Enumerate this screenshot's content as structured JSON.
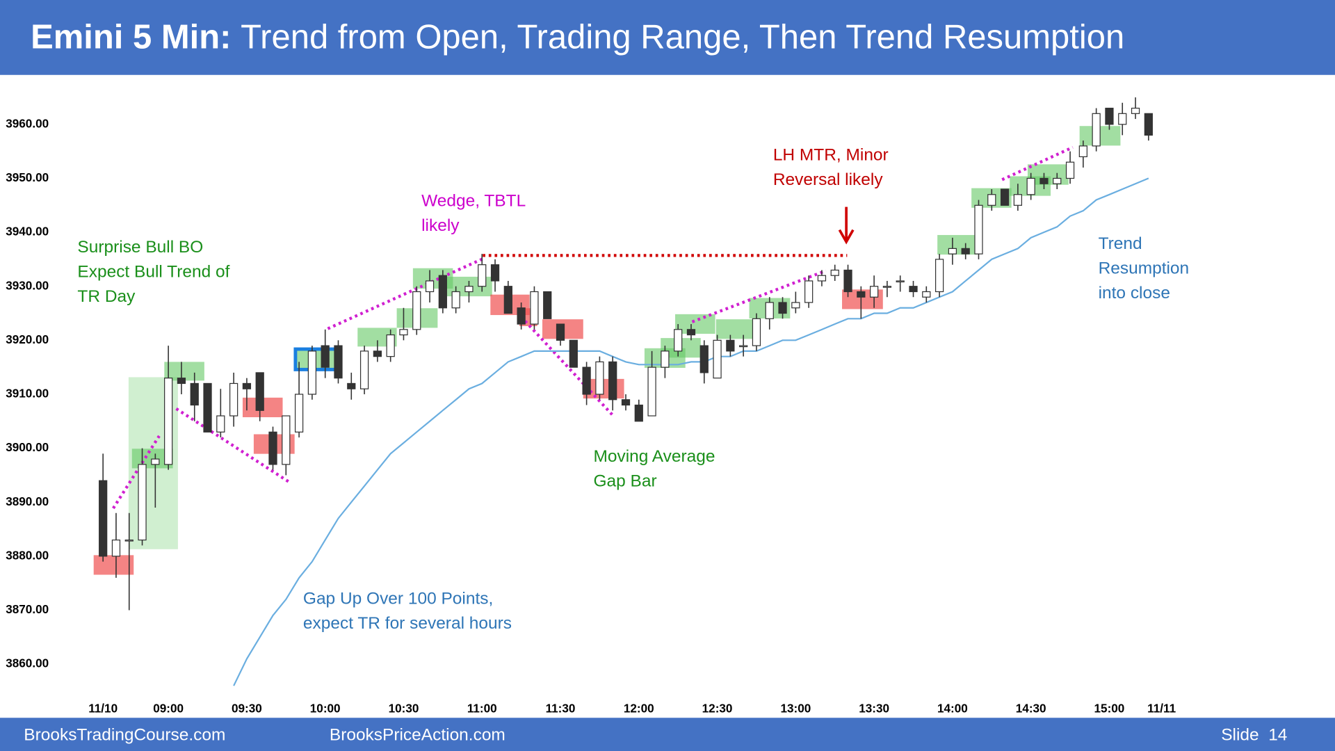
{
  "header": {
    "title_bold": "Emini 5 Min:",
    "title": "Trend from Open, Trading Range, Then Trend Resumption"
  },
  "footer": {
    "left": "BrooksTradingCourse.com",
    "center": "BrooksPriceAction.com",
    "slide": "Slide  14"
  },
  "annotations": [
    {
      "lines": [
        "Surprise Bull BO",
        "Expect Bull Trend of",
        "TR Day"
      ],
      "color": "#1a8f1a"
    },
    {
      "lines": [
        "Wedge, TBTL",
        "likely"
      ],
      "color": "#cc00cc"
    },
    {
      "lines": [
        "LH MTR, Minor",
        "Reversal likely"
      ],
      "color": "#c00000"
    },
    {
      "lines": [
        "Trend",
        "Resumption",
        "into close"
      ],
      "color": "#2e75b6"
    },
    {
      "lines": [
        "Moving Average",
        "Gap Bar"
      ],
      "color": "#1a8f1a"
    },
    {
      "lines": [
        "Gap Up Over 100 Points,",
        "expect TR for several hours"
      ],
      "color": "#2e75b6"
    }
  ],
  "chart_data": {
    "type": "candlestick",
    "categories": [
      "11/10",
      null,
      null,
      null,
      null,
      "09:00",
      null,
      null,
      null,
      null,
      null,
      "09:30",
      null,
      null,
      null,
      null,
      null,
      "10:00",
      null,
      null,
      null,
      null,
      null,
      "10:30",
      null,
      null,
      null,
      null,
      null,
      "11:00",
      null,
      null,
      null,
      null,
      null,
      "11:30",
      null,
      null,
      null,
      null,
      null,
      "12:00",
      null,
      null,
      null,
      null,
      null,
      "12:30",
      null,
      null,
      null,
      null,
      null,
      "13:00",
      null,
      null,
      null,
      null,
      null,
      "13:30",
      null,
      null,
      null,
      null,
      null,
      "14:00",
      null,
      null,
      null,
      null,
      null,
      "14:30",
      null,
      null,
      null,
      null,
      null,
      "15:00",
      null,
      null,
      null,
      "11/11"
    ],
    "open": [
      3894,
      3880,
      3883,
      3883,
      3897,
      3897,
      3913,
      3912,
      3912,
      3903,
      3906,
      3912,
      3914,
      3903,
      3897,
      3903,
      3910,
      3919,
      3919,
      3912,
      3911,
      3918,
      3917,
      3921,
      3922,
      3929,
      3932,
      3926,
      3929,
      3930,
      3934,
      3930,
      3926,
      3923,
      3929,
      3923,
      3920,
      3915,
      3910,
      3916,
      3909,
      3908,
      3906,
      3915,
      3918,
      3922,
      3919,
      3913,
      3920,
      3919,
      3919,
      3924,
      3927,
      3926,
      3927,
      3931,
      3932,
      3933,
      3929,
      3928,
      3930,
      3931,
      3930,
      3928,
      3929,
      3936,
      3937,
      3936,
      3945,
      3948,
      3945,
      3947,
      3950,
      3949,
      3950,
      3954,
      3956,
      3963,
      3960,
      3962,
      3962,
      null
    ],
    "high": [
      3899,
      3888,
      3888,
      3900,
      3899,
      3919,
      3916,
      3914,
      3912,
      3911,
      3914,
      3913,
      3914,
      3904,
      3906,
      3916,
      3919,
      3922,
      3920,
      3914,
      3919,
      3920,
      3922,
      3926,
      3930,
      3933,
      3933,
      3930,
      3931,
      3936,
      3935,
      3931,
      3927,
      3930,
      3929,
      3923,
      3920,
      3916,
      3917,
      3917,
      3910,
      3909,
      3918,
      3919,
      3923,
      3923,
      3920,
      3921,
      3921,
      3921,
      3925,
      3928,
      3928,
      3929,
      3932,
      3933,
      3934,
      3934,
      3930,
      3932,
      3931,
      3932,
      3931,
      3930,
      3936,
      3939,
      3938,
      3946,
      3948,
      3948,
      3949,
      3951,
      3951,
      3951,
      3955,
      3957,
      3963,
      3963,
      3964,
      3965,
      3962,
      null
    ],
    "low": [
      3879,
      3876,
      3870,
      3882,
      3889,
      3896,
      3910,
      3905,
      3903,
      3902,
      3904,
      3907,
      3905,
      3896,
      3895,
      3902,
      3909,
      3913,
      3912,
      3909,
      3910,
      3916,
      3916,
      3920,
      3921,
      3927,
      3925,
      3925,
      3927,
      3929,
      3929,
      3925,
      3922,
      3922,
      3924,
      3919,
      3915,
      3908,
      3909,
      3907,
      3907,
      3905,
      3906,
      3913,
      3917,
      3920,
      3912,
      3913,
      3917,
      3917,
      3918,
      3922,
      3924,
      3925,
      3926,
      3930,
      3931,
      3928,
      3924,
      3926,
      3928,
      3929,
      3928,
      3927,
      3928,
      3934,
      3935,
      3935,
      3944,
      3945,
      3944,
      3946,
      3948,
      3948,
      3949,
      3952,
      3955,
      3959,
      3958,
      3961,
      3957,
      null
    ],
    "close": [
      3880,
      3883,
      3883,
      3897,
      3898,
      3913,
      3912,
      3908,
      3903,
      3906,
      3912,
      3911,
      3907,
      3897,
      3906,
      3910,
      3918,
      3915,
      3913,
      3911,
      3918,
      3917,
      3921,
      3922,
      3929,
      3931,
      3926,
      3929,
      3930,
      3934,
      3931,
      3925,
      3923,
      3929,
      3924,
      3920,
      3915,
      3910,
      3916,
      3909,
      3908,
      3905,
      3915,
      3918,
      3922,
      3921,
      3914,
      3920,
      3918,
      3919,
      3924,
      3927,
      3925,
      3927,
      3931,
      3932,
      3933,
      3929,
      3928,
      3930,
      3930,
      3931,
      3929,
      3929,
      3935,
      3937,
      3936,
      3945,
      3947,
      3945,
      3947,
      3950,
      3949,
      3950,
      3953,
      3956,
      3962,
      3960,
      3962,
      3963,
      3958,
      null
    ],
    "moving_average": {
      "color": "#6aaee0",
      "values": [
        null,
        null,
        null,
        null,
        null,
        null,
        null,
        null,
        null,
        null,
        3856,
        3861,
        3865,
        3869,
        3872,
        3876,
        3879,
        3883,
        3887,
        3890,
        3893,
        3896,
        3899,
        3901,
        3903,
        3905,
        3907,
        3909,
        3911,
        3912,
        3914,
        3916,
        3917,
        3918,
        3918,
        3918,
        3918,
        3918,
        3918,
        3917,
        3916,
        3915.5,
        3915.5,
        3915.5,
        3915.5,
        3916,
        3916,
        3917,
        3917,
        3918,
        3918,
        3919,
        3920,
        3920,
        3921,
        3922,
        3923,
        3924,
        3924,
        3925,
        3925,
        3926,
        3926,
        3927,
        3928,
        3929,
        3931,
        3933,
        3935,
        3936,
        3937,
        3939,
        3940,
        3941,
        3943,
        3944,
        3946,
        3947,
        3948,
        3949,
        3950,
        null
      ]
    },
    "up_color": "#ffffff",
    "down_color": "#333333",
    "ylim": [
      3855,
      3969
    ],
    "yticks": [
      {
        "value": 3860,
        "label": "3860.00"
      },
      {
        "value": 3870,
        "label": "3870.00"
      },
      {
        "value": 3880,
        "label": "3880.00"
      },
      {
        "value": 3890,
        "label": "3890.00"
      },
      {
        "value": 3900,
        "label": "3900.00"
      },
      {
        "value": 3910,
        "label": "3910.00"
      },
      {
        "value": 3920,
        "label": "3920.00"
      },
      {
        "value": 3930,
        "label": "3930.00"
      },
      {
        "value": 3940,
        "label": "3940.00"
      },
      {
        "value": 3950,
        "label": "3950.00"
      },
      {
        "value": 3960,
        "label": "3960.00"
      }
    ],
    "grid": false
  }
}
